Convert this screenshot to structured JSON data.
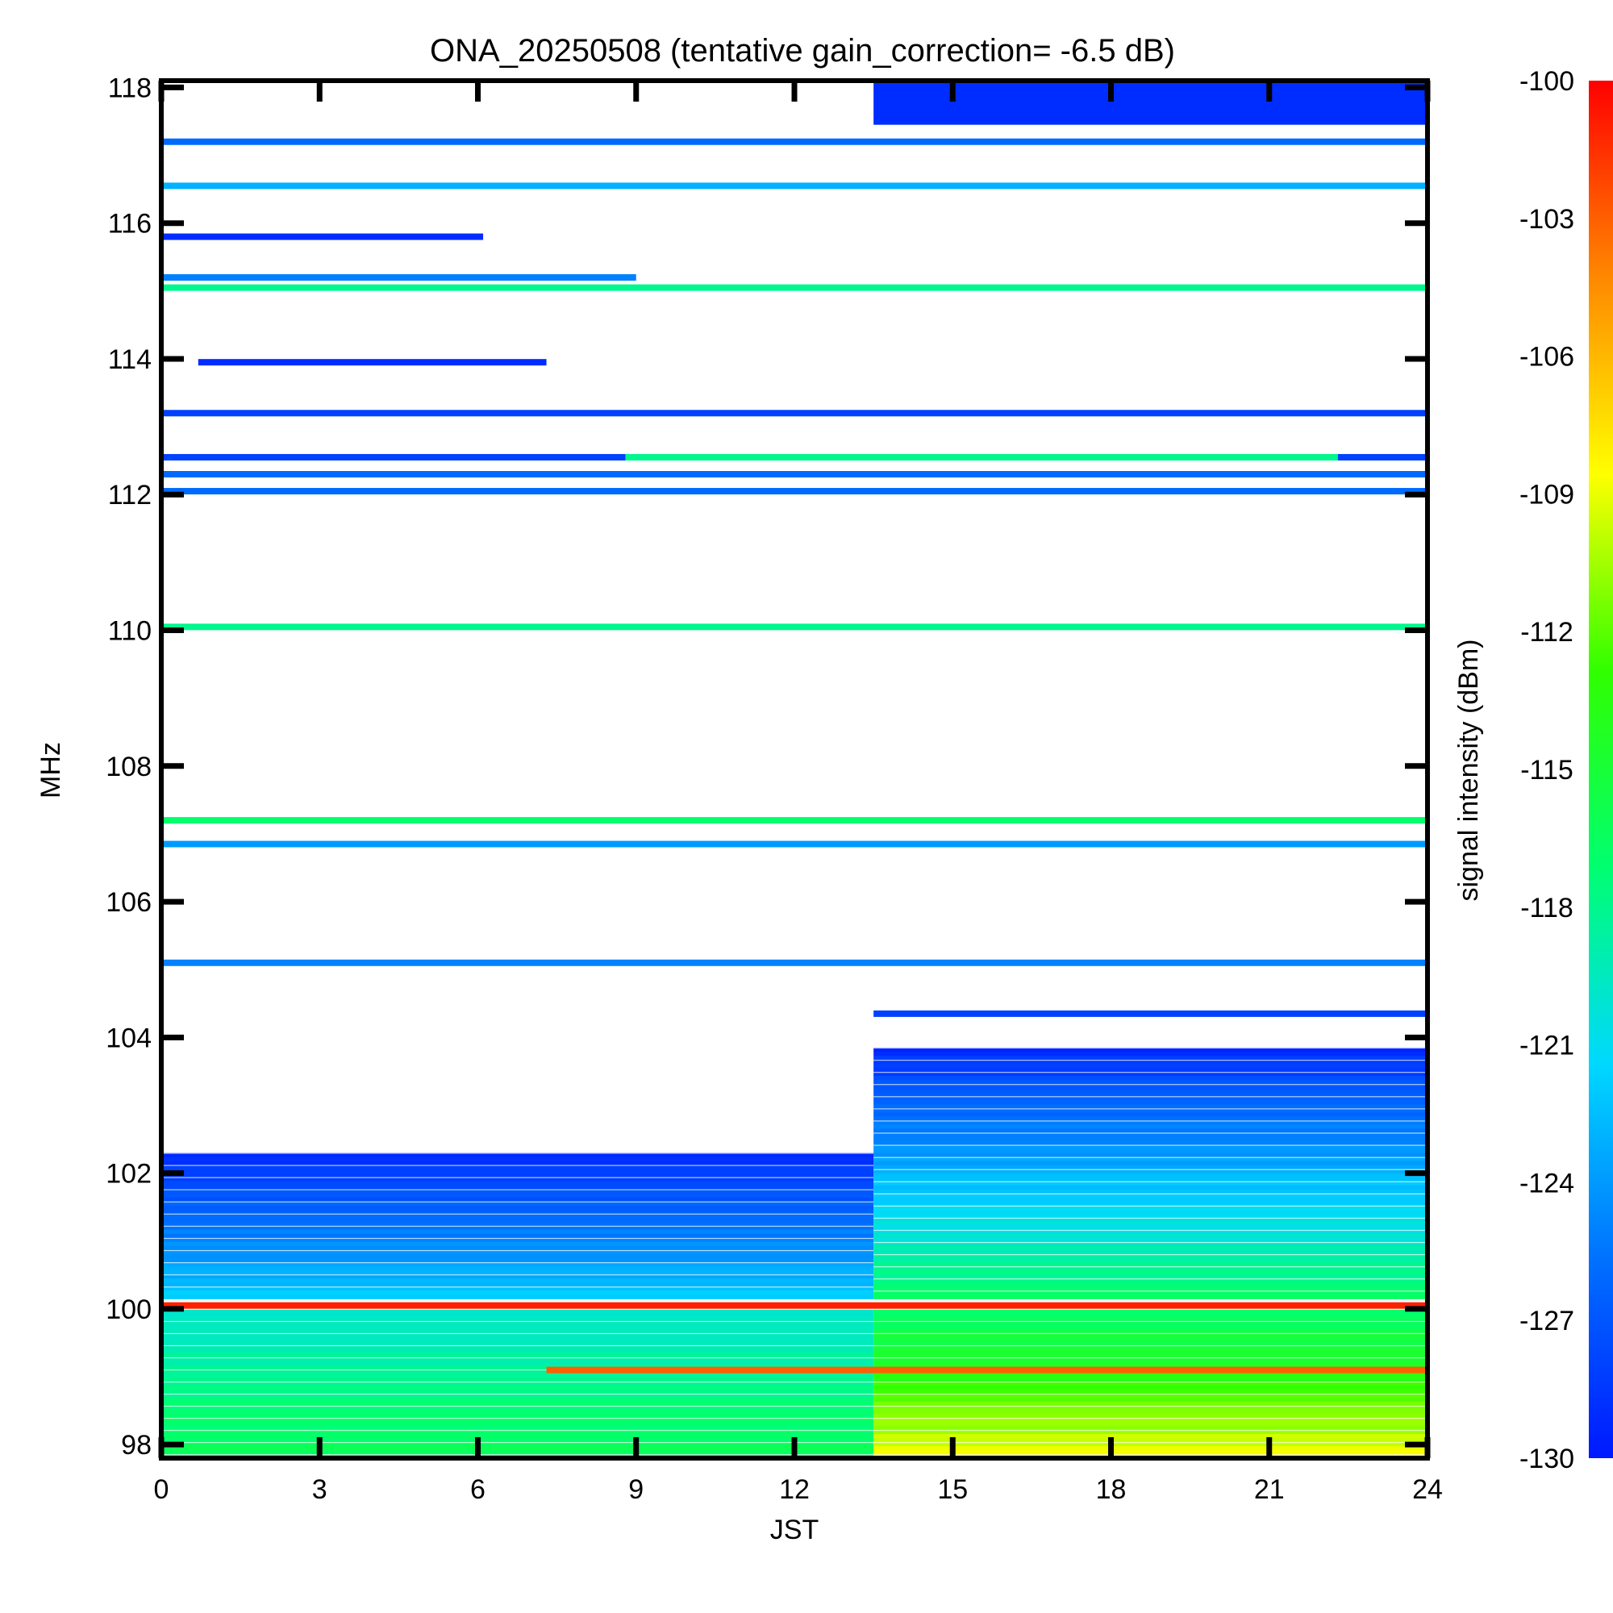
{
  "chart_data": {
    "type": "heatmap",
    "title": "ONA_20250508 (tentative gain_correction= -6.5 dB)",
    "xlabel": "JST",
    "ylabel": "MHz",
    "colorbar_label": "signal intensity (dBm)",
    "xlim": [
      0,
      24
    ],
    "ylim": [
      97.8,
      118.1
    ],
    "x_ticks": [
      "0",
      "3",
      "6",
      "9",
      "12",
      "15",
      "18",
      "21",
      "24"
    ],
    "y_ticks": [
      "98",
      "100",
      "102",
      "104",
      "106",
      "108",
      "110",
      "112",
      "114",
      "116",
      "118"
    ],
    "colorbar_range": [
      -130,
      -100
    ],
    "colorbar_ticks": [
      "-100",
      "-103",
      "-106",
      "-109",
      "-112",
      "-115",
      "-118",
      "-121",
      "-124",
      "-127",
      "-130"
    ],
    "colormap": [
      "#0018ff",
      "#0070ff",
      "#00d8ff",
      "#00ff70",
      "#30ff00",
      "#ffff00",
      "#ff8800",
      "#ff0000"
    ],
    "bands": [
      {
        "f": 117.2,
        "t0": 0,
        "t1": 24,
        "level": -126
      },
      {
        "f": 116.55,
        "t0": 0,
        "t1": 24,
        "level": -123
      },
      {
        "f": 115.2,
        "t0": 0,
        "t1": 9,
        "level": -125
      },
      {
        "f": 115.05,
        "t0": 0,
        "t1": 24,
        "level": -118
      },
      {
        "f": 115.8,
        "t0": 0,
        "t1": 6.1,
        "level": -129
      },
      {
        "f": 113.95,
        "t0": 0.7,
        "t1": 7.3,
        "level": -129
      },
      {
        "f": 113.2,
        "t0": 0,
        "t1": 24,
        "level": -128
      },
      {
        "f": 112.55,
        "t0": 0,
        "t1": 8.8,
        "level": -128
      },
      {
        "f": 112.55,
        "t0": 8.8,
        "t1": 22.3,
        "level": -118
      },
      {
        "f": 112.55,
        "t0": 22.3,
        "t1": 24,
        "level": -128
      },
      {
        "f": 112.3,
        "t0": 0,
        "t1": 24,
        "level": -126
      },
      {
        "f": 112.05,
        "t0": 0,
        "t1": 24,
        "level": -126
      },
      {
        "f": 110.05,
        "t0": 0,
        "t1": 24,
        "level": -118
      },
      {
        "f": 107.2,
        "t0": 0,
        "t1": 24,
        "level": -117
      },
      {
        "f": 106.85,
        "t0": 0,
        "t1": 24,
        "level": -124
      },
      {
        "f": 105.1,
        "t0": 0,
        "t1": 24,
        "level": -125
      },
      {
        "f": 104.35,
        "t0": 13.5,
        "t1": 24,
        "level": -128
      },
      {
        "f": 100.05,
        "t0": 0,
        "t1": 24,
        "level": -101
      },
      {
        "f": 99.1,
        "t0": 7.3,
        "t1": 24,
        "level": -103
      }
    ],
    "blocks": [
      {
        "f0": 117.45,
        "f1": 118.1,
        "t0": 13.5,
        "t1": 24,
        "level": -129
      },
      {
        "f0": 102.3,
        "f1": 100.15,
        "t0": 0,
        "t1": 13.5,
        "level_top": -129,
        "level_bottom": -122
      },
      {
        "f0": 103.85,
        "f1": 100.15,
        "t0": 13.5,
        "t1": 24,
        "level_top": -129,
        "level_bottom": -117
      },
      {
        "f0": 100.0,
        "f1": 97.8,
        "t0": 0,
        "t1": 13.5,
        "level_top": -120,
        "level_bottom": -116
      },
      {
        "f0": 100.0,
        "f1": 97.8,
        "t0": 13.5,
        "t1": 24,
        "level_top": -117,
        "level_bottom": -109
      }
    ]
  }
}
